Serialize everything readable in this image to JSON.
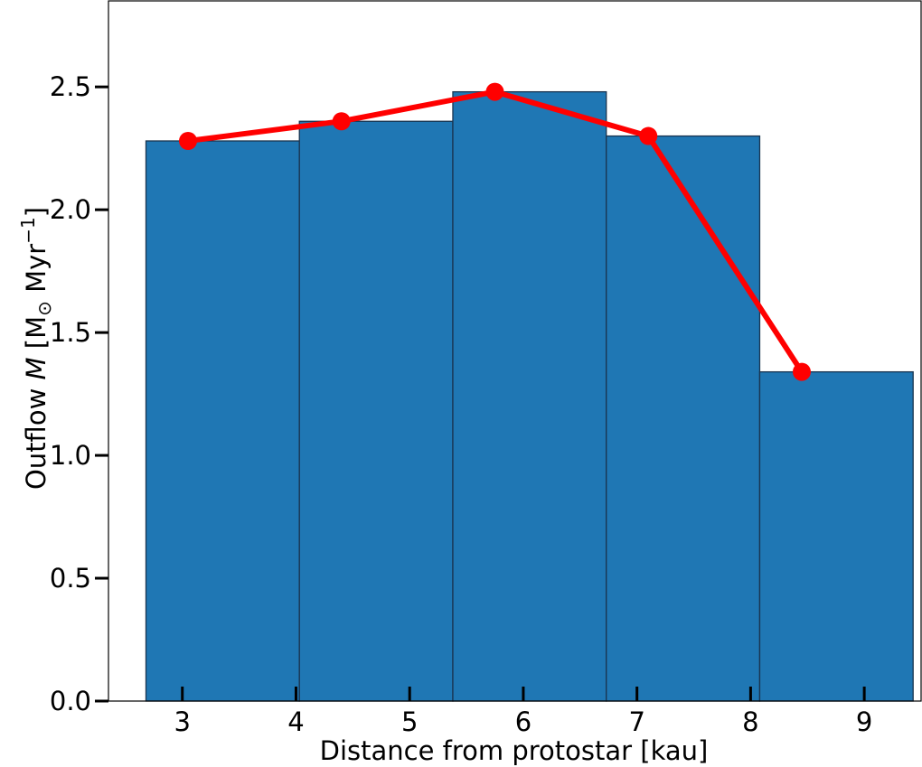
{
  "chart_data": {
    "type": "bar",
    "xlabel": "Distance from protostar [kau]",
    "ylabel": {
      "prefix": "Outflow ",
      "symbol": "M",
      "units_open": " [M",
      "sun_symbol": "⊙",
      "units_mid": " Myr",
      "exponent": "−1",
      "units_close": "]"
    },
    "xlim": [
      2.35,
      9.5
    ],
    "ylim": [
      0.0,
      2.85
    ],
    "x_ticks": [
      3,
      4,
      5,
      6,
      7,
      8,
      9
    ],
    "x_tick_labels": [
      "3",
      "4",
      "5",
      "6",
      "7",
      "8",
      "9"
    ],
    "y_ticks": [
      0.0,
      0.5,
      1.0,
      1.5,
      2.0,
      2.5
    ],
    "y_tick_labels": [
      "0.0",
      "0.5",
      "1.0",
      "1.5",
      "2.0",
      "2.5"
    ],
    "grid": false,
    "bars": {
      "color": "#1f77b4",
      "edge_color": "#1a3550",
      "bin_edges": [
        2.68,
        4.03,
        5.38,
        6.73,
        8.08,
        9.43
      ],
      "values": [
        2.28,
        2.36,
        2.48,
        2.3,
        1.34
      ]
    },
    "line": {
      "color": "#ff0000",
      "x": [
        3.05,
        4.4,
        5.75,
        7.1,
        8.45
      ],
      "y": [
        2.28,
        2.36,
        2.48,
        2.3,
        1.34
      ]
    }
  }
}
